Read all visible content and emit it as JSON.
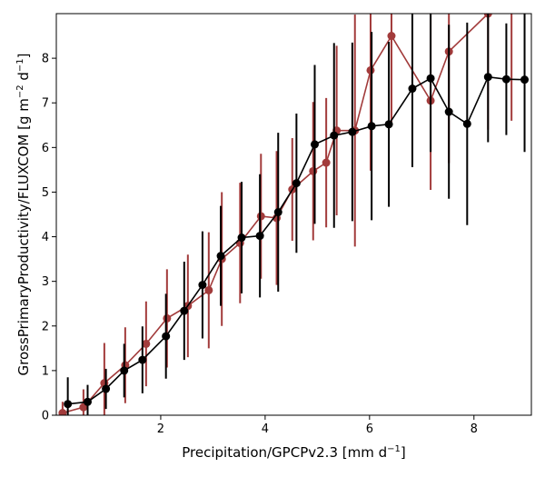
{
  "chart_data": {
    "type": "line",
    "xlabel": "Precipitation/GPCPv2.3 [mm d",
    "xlabel_sup": "−1",
    "xlabel_end": "]",
    "ylabel": "GrossPrimaryProductivity/FLUXCOM [g m",
    "ylabel_sup1": "−2",
    "ylabel_mid": " d",
    "ylabel_sup2": "−1",
    "ylabel_end": "]",
    "xlim": [
      0,
      9.1
    ],
    "ylim": [
      0,
      9.0
    ],
    "xticks": [
      2,
      4,
      6,
      8
    ],
    "yticks": [
      0,
      1,
      2,
      3,
      4,
      5,
      6,
      7,
      8
    ],
    "grid": false,
    "series": [
      {
        "color": "#a23b3b",
        "x": [
          0.12,
          0.52,
          0.92,
          1.32,
          1.72,
          2.12,
          2.52,
          2.92,
          3.17,
          3.52,
          3.92,
          4.22,
          4.52,
          4.92,
          5.17,
          5.37,
          5.72,
          6.02,
          6.42,
          7.17,
          7.52,
          8.27,
          8.72
        ],
        "y": [
          0.05,
          0.18,
          0.72,
          1.12,
          1.6,
          2.17,
          2.45,
          2.8,
          3.5,
          3.86,
          4.46,
          4.42,
          5.06,
          5.47,
          5.66,
          6.38,
          6.38,
          7.73,
          8.5,
          7.05,
          8.15,
          9.0,
          9.2
        ],
        "err": [
          0.25,
          0.4,
          0.9,
          0.85,
          0.95,
          1.1,
          1.15,
          1.3,
          1.5,
          1.35,
          1.4,
          1.5,
          1.15,
          1.55,
          1.45,
          1.9,
          2.6,
          2.25,
          2.0,
          2.0,
          2.5,
          2.6,
          2.6
        ]
      },
      {
        "color": "#000000",
        "x": [
          0.22,
          0.6,
          0.95,
          1.3,
          1.65,
          2.1,
          2.45,
          2.8,
          3.15,
          3.55,
          3.9,
          4.25,
          4.6,
          4.95,
          5.32,
          5.67,
          6.04,
          6.37,
          6.82,
          7.17,
          7.52,
          7.87,
          8.27,
          8.62,
          8.97
        ],
        "y": [
          0.25,
          0.3,
          0.59,
          1.0,
          1.24,
          1.77,
          2.34,
          2.92,
          3.57,
          3.98,
          4.02,
          4.55,
          5.2,
          6.07,
          6.27,
          6.35,
          6.48,
          6.52,
          7.32,
          7.55,
          6.8,
          6.53,
          7.58,
          7.53,
          7.52
        ],
        "err": [
          0.6,
          0.38,
          0.45,
          0.6,
          0.75,
          0.95,
          1.1,
          1.2,
          1.12,
          1.25,
          1.38,
          1.78,
          1.56,
          1.78,
          2.07,
          2.0,
          2.11,
          1.85,
          1.76,
          1.65,
          1.95,
          2.27,
          1.46,
          1.25,
          1.62
        ]
      }
    ]
  }
}
